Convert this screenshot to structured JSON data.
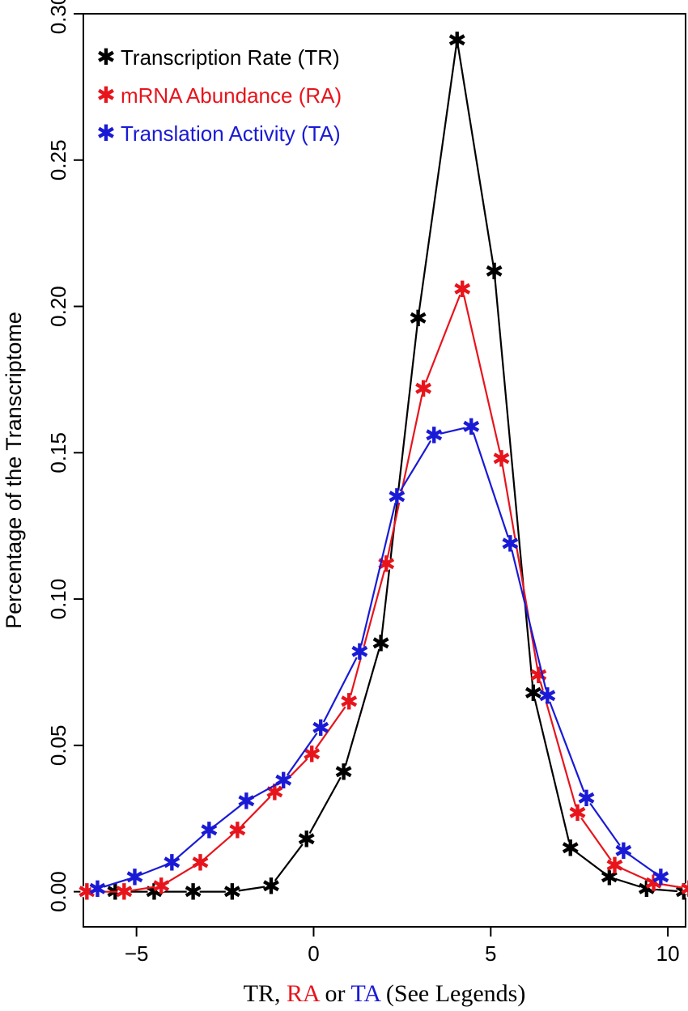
{
  "chart_data": {
    "type": "line",
    "xlabel_parts": [
      {
        "text": "TR, ",
        "color": "#000000"
      },
      {
        "text": "RA",
        "color": "#e8141c"
      },
      {
        "text": " or ",
        "color": "#000000"
      },
      {
        "text": "TA",
        "color": "#1a1ad6"
      },
      {
        "text": " (See Legends)",
        "color": "#000000"
      }
    ],
    "ylabel": "Percentage of the Transcriptome",
    "xlim": [
      -6.5,
      10.5
    ],
    "ylim": [
      -0.012,
      0.3
    ],
    "x_ticks": [
      -5,
      0,
      5,
      10
    ],
    "x_tick_labels": [
      "−5",
      "0",
      "5",
      "10"
    ],
    "y_ticks": [
      0.0,
      0.05,
      0.1,
      0.15,
      0.2,
      0.25,
      0.3
    ],
    "y_tick_labels": [
      "0.00",
      "0.05",
      "0.10",
      "0.15",
      "0.20",
      "0.25",
      "0.30"
    ],
    "legend_position": "top-left",
    "marker": "asterisk",
    "series": [
      {
        "name": "Transcription Rate (TR)",
        "color": "#000000",
        "x": [
          -5.6,
          -4.5,
          -3.4,
          -2.3,
          -1.2,
          -0.2,
          0.85,
          1.9,
          2.95,
          4.05,
          5.1,
          6.2,
          7.25,
          8.35,
          9.4,
          10.45
        ],
        "y": [
          0.0,
          0.0,
          0.0,
          0.0,
          0.002,
          0.018,
          0.041,
          0.085,
          0.196,
          0.291,
          0.212,
          0.068,
          0.015,
          0.005,
          0.001,
          0.0
        ]
      },
      {
        "name": "mRNA Abundance (RA)",
        "color": "#e8141c",
        "x": [
          -6.4,
          -5.35,
          -4.3,
          -3.2,
          -2.15,
          -1.1,
          -0.05,
          1.0,
          2.05,
          3.1,
          4.2,
          5.3,
          6.35,
          7.45,
          8.5,
          9.6,
          10.6
        ],
        "y": [
          0.0,
          0.0,
          0.002,
          0.01,
          0.021,
          0.034,
          0.047,
          0.065,
          0.112,
          0.172,
          0.206,
          0.148,
          0.074,
          0.027,
          0.009,
          0.003,
          0.001
        ]
      },
      {
        "name": "Translation Activity (TA)",
        "color": "#1a1ad6",
        "x": [
          -6.1,
          -5.05,
          -4.0,
          -2.95,
          -1.9,
          -0.85,
          0.2,
          1.3,
          2.35,
          3.4,
          4.45,
          5.55,
          6.6,
          7.7,
          8.75,
          9.8
        ],
        "y": [
          0.001,
          0.005,
          0.01,
          0.021,
          0.031,
          0.038,
          0.056,
          0.082,
          0.135,
          0.156,
          0.159,
          0.119,
          0.067,
          0.032,
          0.014,
          0.005
        ]
      }
    ]
  }
}
